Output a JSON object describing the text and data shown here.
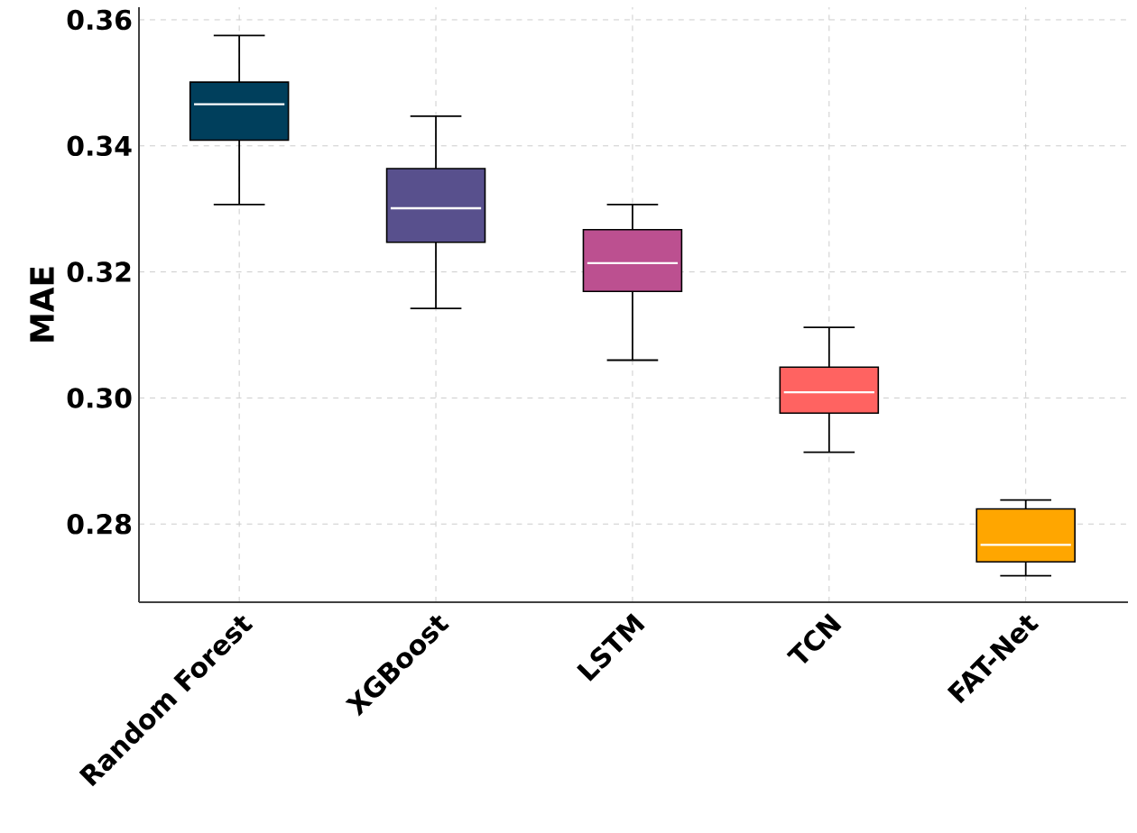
{
  "chart_data": {
    "type": "box",
    "ylabel": "MAE",
    "categories": [
      "Random Forest",
      "XGBoost",
      "LSTM",
      "TCN",
      "FAT-Net"
    ],
    "colors": [
      "#003f5c",
      "#58508d",
      "#bc5090",
      "#ff6361",
      "#ffa600"
    ],
    "boxes": [
      {
        "low": 0.3307,
        "q1": 0.3409,
        "median": 0.3466,
        "q3": 0.3501,
        "high": 0.3575
      },
      {
        "low": 0.3142,
        "q1": 0.3247,
        "median": 0.3301,
        "q3": 0.3364,
        "high": 0.3447
      },
      {
        "low": 0.306,
        "q1": 0.3169,
        "median": 0.3214,
        "q3": 0.3267,
        "high": 0.3307
      },
      {
        "low": 0.2914,
        "q1": 0.2976,
        "median": 0.3009,
        "q3": 0.3049,
        "high": 0.3112
      },
      {
        "low": 0.2718,
        "q1": 0.274,
        "median": 0.2767,
        "q3": 0.2824,
        "high": 0.2838
      }
    ],
    "ylim": [
      0.2676,
      0.362
    ],
    "yticks": [
      {
        "value": 0.28,
        "label": "0.28"
      },
      {
        "value": 0.3,
        "label": "0.30"
      },
      {
        "value": 0.32,
        "label": "0.32"
      },
      {
        "value": 0.34,
        "label": "0.34"
      },
      {
        "value": 0.36,
        "label": "0.36"
      }
    ],
    "grid": true
  }
}
